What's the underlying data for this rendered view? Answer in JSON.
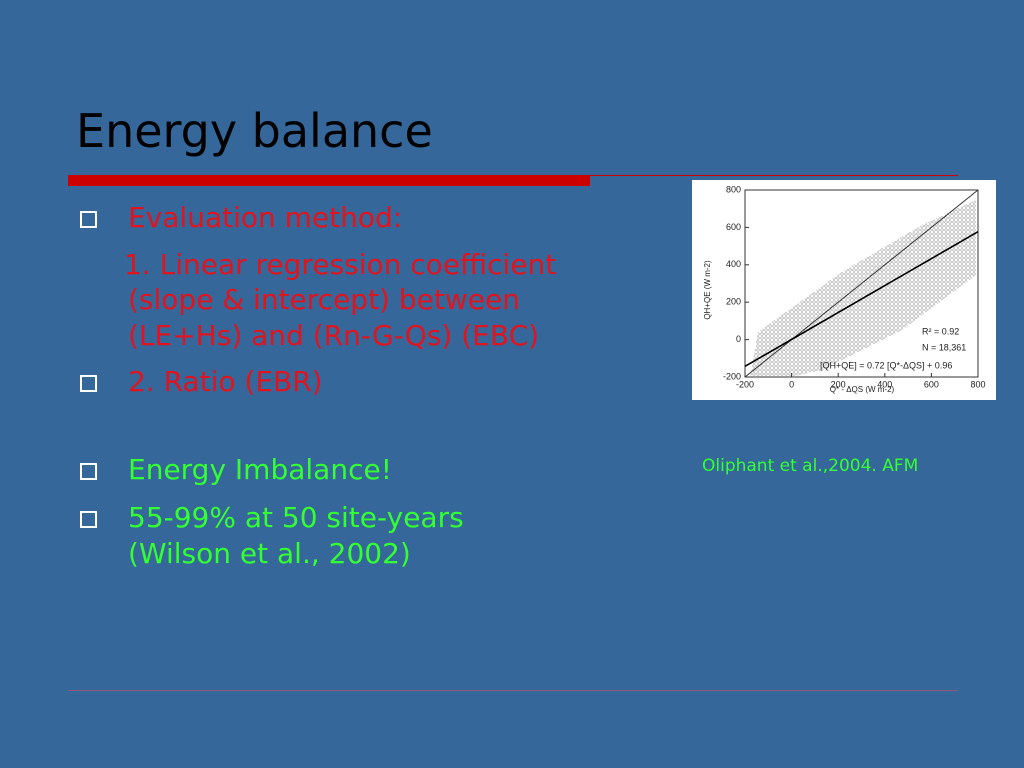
{
  "title": "Energy balance",
  "body": [
    {
      "text": "Evaluation method:",
      "color": "#e0141e"
    },
    {
      "text": "1. Linear regression coefficient",
      "color": "#e0141e"
    },
    {
      "text": "(slope & intercept) between",
      "color": "#e0141e"
    },
    {
      "text": "(LE+Hs) and (Rn-G-Qs) (EBC)",
      "color": "#e0141e"
    },
    {
      "text": "2. Ratio (EBR)",
      "color": "#e0141e"
    },
    {
      "text": "Energy Imbalance!",
      "color": "#33ff33"
    },
    {
      "text": "55-99% at 50 site-years",
      "color": "#33ff33"
    },
    {
      "text": "(Wilson et al., 2002)",
      "color": "#33ff33"
    }
  ],
  "figure": {
    "caption": "Oliphant et al.,2004. AFM",
    "x_label": "Q* - ΔQS (W m-2)",
    "y_label": "QH+QE (W m-2)",
    "xlim": [
      -200,
      800
    ],
    "xticks": [
      -200,
      0,
      200,
      400,
      600,
      800
    ],
    "ylim": [
      -200,
      800
    ],
    "yticks": [
      -200,
      0,
      200,
      400,
      600,
      800
    ],
    "r2": "R² = 0.92",
    "n": "N = 18,361",
    "fit": {
      "label": "[QH+QE] = 0.72 [Q*-ΔQS] + 0.96",
      "slope": 0.72,
      "intercept": 0.96
    }
  }
}
